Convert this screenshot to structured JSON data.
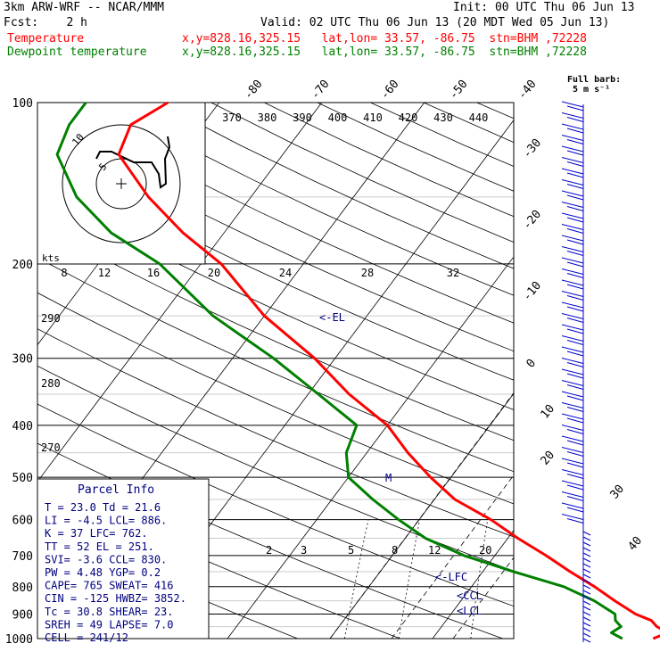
{
  "header": {
    "model": "3km ARW-WRF -- NCAR/MMM",
    "init": "Init: 00 UTC Thu 06 Jun 13",
    "fcst": "Fcst:    2 h",
    "valid": "Valid: 02 UTC Thu 06 Jun 13 (20 MDT Wed 05 Jun 13)",
    "temp_line": "Temperature",
    "temp_loc": "x,y=828.16,325.15   lat,lon= 33.57, -86.75  stn=BHM ,72228",
    "dew_line": "Dewpoint temperature",
    "dew_loc": "x,y=828.16,325.15   lat,lon= 33.57, -86.75  stn=BHM ,72228",
    "barb_label_1": "Full barb:",
    "barb_label_2": "5 m s⁻¹"
  },
  "colors": {
    "temperature": "#ff0000",
    "dewpoint": "#008000",
    "axes": "#000000",
    "annotation": "#000080",
    "barb": "#0000cc"
  },
  "chart_data": {
    "type": "line",
    "title": "",
    "ylabel": "",
    "pressure_ticks": [
      "100",
      "200",
      "300",
      "400",
      "500",
      "600",
      "700",
      "800",
      "900",
      "1000"
    ],
    "pressure_values": [
      100,
      200,
      300,
      400,
      500,
      600,
      700,
      800,
      900,
      1000
    ],
    "isotherm_labels_top": [
      "-80",
      "-70",
      "-60",
      "-50",
      "-40"
    ],
    "isotherm_labels_right": [
      "-30",
      "-20",
      "-10",
      "0",
      "10",
      "20",
      "30",
      "40"
    ],
    "theta_labels_top": [
      "370",
      "380",
      "390",
      "400",
      "410",
      "420",
      "430",
      "440"
    ],
    "theta_labels_left": [
      "290",
      "280",
      "270"
    ],
    "mixing_ratio_labels": [
      "2",
      "3",
      "5",
      "8",
      "12",
      "20"
    ],
    "hodo_kts_label": "kts",
    "hodo_speed_labels": [
      "8",
      "12",
      "16",
      "20",
      "24",
      "28",
      "32"
    ],
    "hodo_ring_labels": [
      "10",
      "5"
    ],
    "series": [
      {
        "name": "Temperature",
        "color": "#ff0000",
        "points": [
          [
            1000,
            21.5
          ],
          [
            975,
            22.5
          ],
          [
            950,
            21
          ],
          [
            925,
            20
          ],
          [
            900,
            18
          ],
          [
            850,
            15
          ],
          [
            800,
            12
          ],
          [
            750,
            8.5
          ],
          [
            700,
            5
          ],
          [
            650,
            1
          ],
          [
            600,
            -3
          ],
          [
            550,
            -8
          ],
          [
            500,
            -12
          ],
          [
            450,
            -16
          ],
          [
            400,
            -20
          ],
          [
            350,
            -26
          ],
          [
            300,
            -32
          ],
          [
            250,
            -40
          ],
          [
            200,
            -48
          ],
          [
            175,
            -54
          ],
          [
            150,
            -60
          ],
          [
            125,
            -66
          ],
          [
            110,
            -67
          ],
          [
            100,
            -65
          ]
        ]
      },
      {
        "name": "Dewpoint temperature",
        "color": "#008000",
        "points": [
          [
            1000,
            18.5
          ],
          [
            975,
            17
          ],
          [
            950,
            17.5
          ],
          [
            925,
            16.5
          ],
          [
            900,
            16
          ],
          [
            850,
            13
          ],
          [
            800,
            9
          ],
          [
            750,
            3
          ],
          [
            700,
            -3
          ],
          [
            650,
            -8
          ],
          [
            600,
            -12
          ],
          [
            550,
            -16
          ],
          [
            500,
            -20
          ],
          [
            450,
            -22
          ],
          [
            400,
            -23
          ],
          [
            350,
            -29
          ],
          [
            300,
            -36
          ],
          [
            250,
            -45
          ],
          [
            200,
            -54
          ],
          [
            175,
            -61
          ],
          [
            150,
            -67
          ],
          [
            125,
            -72
          ],
          [
            110,
            -73
          ],
          [
            100,
            -73
          ]
        ]
      }
    ],
    "annotations": [
      "EL",
      "M",
      "LFC",
      "CCL",
      "LCL"
    ]
  },
  "parcel": {
    "title": "Parcel Info",
    "rows": [
      "T  =   23.0 Td =  21.6",
      "LI =   -4.5 LCL=  886.",
      "K  =     37 LFC=  762.",
      "TT =     52 EL =  251.",
      "SVI=   -3.6 CCL=  830.",
      "PW =   4.48 YGP=   0.2",
      "CAPE=   765 SWEAT=  416",
      "CIN =  -125 HWBZ= 3852.",
      "Tc =   30.8 SHEAR=  23.",
      "SREH =   49 LAPSE=  7.0",
      "CELL = 241/12"
    ]
  }
}
